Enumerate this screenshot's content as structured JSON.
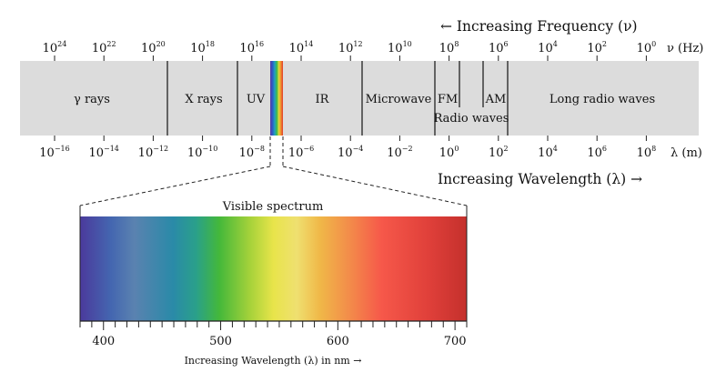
{
  "title_frequency": "← Increasing Frequency (ν)",
  "title_wavelength": "Increasing Wavelength (λ) →",
  "freq_axis": {
    "unit": "ν (Hz)",
    "ticks": [
      {
        "base": "10",
        "exp": "24"
      },
      {
        "base": "10",
        "exp": "22"
      },
      {
        "base": "10",
        "exp": "20"
      },
      {
        "base": "10",
        "exp": "18"
      },
      {
        "base": "10",
        "exp": "16"
      },
      {
        "base": "10",
        "exp": "14"
      },
      {
        "base": "10",
        "exp": "12"
      },
      {
        "base": "10",
        "exp": "10"
      },
      {
        "base": "10",
        "exp": "8"
      },
      {
        "base": "10",
        "exp": "6"
      },
      {
        "base": "10",
        "exp": "4"
      },
      {
        "base": "10",
        "exp": "2"
      },
      {
        "base": "10",
        "exp": "0"
      }
    ]
  },
  "wave_axis": {
    "unit": "λ (m)",
    "ticks": [
      {
        "base": "10",
        "exp": "−16"
      },
      {
        "base": "10",
        "exp": "−14"
      },
      {
        "base": "10",
        "exp": "−12"
      },
      {
        "base": "10",
        "exp": "−10"
      },
      {
        "base": "10",
        "exp": "−8"
      },
      {
        "base": "10",
        "exp": "−6"
      },
      {
        "base": "10",
        "exp": "−4"
      },
      {
        "base": "10",
        "exp": "−2"
      },
      {
        "base": "10",
        "exp": "0"
      },
      {
        "base": "10",
        "exp": "2"
      },
      {
        "base": "10",
        "exp": "4"
      },
      {
        "base": "10",
        "exp": "6"
      },
      {
        "base": "10",
        "exp": "8"
      }
    ]
  },
  "bands": {
    "gamma": "γ rays",
    "xray": "X rays",
    "uv": "UV",
    "ir": "IR",
    "microwave": "Microwave",
    "fm": "FM",
    "am": "AM",
    "radio": "Radio waves",
    "long_radio": "Long radio waves"
  },
  "visible": {
    "title": "Visible spectrum",
    "xlabel": "Increasing Wavelength (λ) in nm →",
    "ticks": [
      "400",
      "500",
      "600",
      "700"
    ]
  },
  "colors": {
    "band_fill": "#dcdcdc",
    "line": "#222222"
  }
}
